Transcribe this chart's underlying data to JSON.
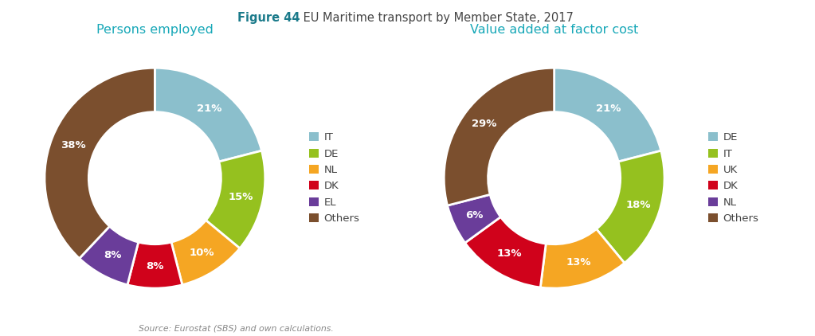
{
  "title_bold": "Figure 44",
  "title_normal": " EU Maritime transport by Member State, 2017",
  "subtitle_left": "Persons employed",
  "subtitle_right": "Value added at factor cost",
  "source": "Source: Eurostat (SBS) and own calculations.",
  "chart1_labels": [
    "IT",
    "DE",
    "NL",
    "DK",
    "EL",
    "Others"
  ],
  "chart1_values": [
    21,
    15,
    10,
    8,
    8,
    38
  ],
  "chart1_colors": [
    "#8BBFCC",
    "#95C11F",
    "#F5A623",
    "#D0021B",
    "#6A3D9A",
    "#7B4F2E"
  ],
  "chart1_pct_labels": [
    "21%",
    "15%",
    "10%",
    "8%",
    "8%",
    "38%"
  ],
  "chart2_labels": [
    "DE",
    "IT",
    "UK",
    "DK",
    "NL",
    "Others"
  ],
  "chart2_values": [
    21,
    18,
    13,
    13,
    6,
    29
  ],
  "chart2_colors": [
    "#8BBFCC",
    "#95C11F",
    "#F5A623",
    "#D0021B",
    "#6A3D9A",
    "#7B4F2E"
  ],
  "chart2_pct_labels": [
    "21%",
    "18%",
    "13%",
    "13%",
    "6%",
    "29%"
  ],
  "donut_width": 0.4,
  "title_color_bold": "#1A7A8A",
  "subtitle_color": "#18A8B8",
  "title_normal_color": "#444444",
  "source_color": "#888888",
  "background_color": "#FFFFFF"
}
